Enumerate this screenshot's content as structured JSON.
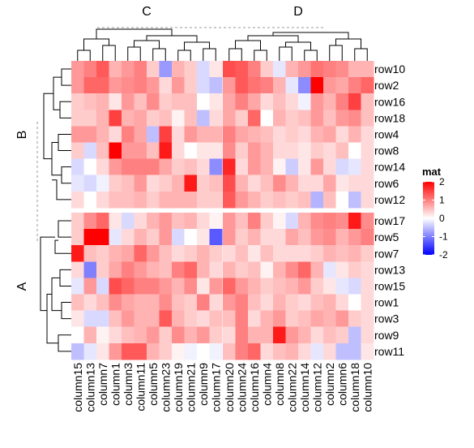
{
  "chart_data": {
    "type": "heatmap",
    "column_groups": [
      {
        "label": "C",
        "columns": [
          "column15",
          "column13",
          "column7",
          "column1",
          "column3",
          "column11",
          "column5",
          "column23",
          "column19",
          "column21",
          "column9",
          "column17"
        ]
      },
      {
        "label": "D",
        "columns": [
          "column20",
          "column24",
          "column16",
          "column4",
          "column8",
          "column22",
          "column14",
          "column12",
          "column2",
          "column6",
          "column18",
          "column10"
        ]
      }
    ],
    "row_groups": [
      {
        "label": "B",
        "rows": [
          "row10",
          "row2",
          "row16",
          "row18",
          "row4",
          "row8",
          "row14",
          "row6",
          "row12"
        ]
      },
      {
        "label": "A",
        "rows": [
          "row17",
          "row5",
          "row7",
          "row13",
          "row15",
          "row1",
          "row3",
          "row9",
          "row11"
        ]
      }
    ],
    "values": [
      [
        0.8,
        1.0,
        1.3,
        0.6,
        0.8,
        1.0,
        0.4,
        -0.8,
        0.6,
        0.4,
        -0.3,
        0.2,
        1.4,
        1.3,
        1.0,
        0.4,
        -0.2,
        0.6,
        0.8,
        1.1,
        1.0,
        0.9,
        0.6,
        0.6
      ],
      [
        0.8,
        1.2,
        1.2,
        0.8,
        0.9,
        1.0,
        0.8,
        0.3,
        0.8,
        0.4,
        -0.3,
        -0.5,
        0.8,
        1.3,
        1.1,
        1.0,
        0.6,
        -0.2,
        -0.9,
        2.0,
        0.8,
        0.7,
        1.0,
        1.2
      ],
      [
        0.4,
        0.5,
        0.6,
        0.2,
        0.8,
        0.5,
        0.9,
        0.4,
        0.5,
        0.5,
        0.0,
        0.2,
        0.7,
        1.0,
        0.7,
        0.3,
        0.5,
        0.3,
        -0.1,
        0.8,
        0.6,
        1.0,
        1.5,
        0.5
      ],
      [
        0.4,
        0.4,
        0.6,
        1.5,
        0.6,
        0.7,
        0.4,
        0.5,
        0.1,
        0.5,
        -0.5,
        0.3,
        0.7,
        0.4,
        1.2,
        0.0,
        0.6,
        0.4,
        0.5,
        0.8,
        0.5,
        0.8,
        0.9,
        0.5
      ],
      [
        0.8,
        0.8,
        0.6,
        0.3,
        1.0,
        0.7,
        -0.5,
        1.5,
        0.3,
        0.8,
        0.6,
        0.6,
        1.0,
        0.7,
        0.6,
        0.5,
        0.3,
        0.4,
        0.3,
        0.6,
        0.7,
        0.3,
        0.6,
        0.3
      ],
      [
        0.4,
        -0.3,
        0.5,
        2.0,
        0.8,
        0.8,
        0.5,
        1.8,
        0.3,
        0.0,
        0.2,
        0.2,
        0.9,
        0.4,
        0.8,
        0.6,
        0.3,
        0.3,
        0.2,
        0.4,
        0.3,
        0.5,
        0.0,
        0.3
      ],
      [
        -0.3,
        0.0,
        0.3,
        0.8,
        1.0,
        1.0,
        1.0,
        0.7,
        0.4,
        0.5,
        0.3,
        -0.9,
        1.7,
        0.3,
        0.8,
        0.6,
        0.1,
        -0.4,
        0.2,
        0.8,
        0.3,
        -0.3,
        -0.2,
        0.3
      ],
      [
        -0.2,
        -0.3,
        -0.1,
        0.4,
        0.5,
        0.8,
        0.3,
        0.4,
        0.6,
        1.8,
        0.4,
        0.5,
        1.4,
        0.6,
        0.3,
        0.5,
        0.9,
        0.6,
        0.3,
        0.3,
        0.7,
        0.2,
        0.3,
        0.3
      ],
      [
        0.3,
        0.0,
        0.3,
        0.5,
        0.5,
        0.6,
        0.4,
        0.6,
        0.6,
        0.6,
        0.4,
        0.4,
        1.3,
        0.8,
        0.6,
        0.4,
        0.5,
        0.4,
        0.5,
        -0.6,
        0.5,
        0.0,
        -0.5,
        0.3
      ],
      [
        0.4,
        0.9,
        1.2,
        0.2,
        -0.3,
        0.3,
        0.6,
        0.8,
        0.5,
        0.6,
        0.3,
        0.1,
        0.8,
        0.5,
        1.0,
        0.4,
        0.1,
        -0.3,
        0.6,
        0.9,
        1.0,
        0.9,
        1.8,
        0.9
      ],
      [
        0.4,
        2.2,
        2.0,
        -0.2,
        0.3,
        0.6,
        0.4,
        0.8,
        -0.3,
        0.0,
        0.2,
        -1.3,
        0.8,
        0.4,
        0.6,
        0.3,
        0.3,
        0.7,
        0.5,
        0.8,
        0.9,
        0.6,
        0.8,
        1.0
      ],
      [
        1.8,
        0.5,
        0.4,
        0.6,
        0.7,
        1.2,
        0.8,
        0.5,
        0.3,
        0.4,
        0.6,
        0.4,
        0.3,
        0.5,
        0.2,
        0.5,
        0.3,
        0.3,
        0.3,
        0.4,
        0.6,
        0.5,
        0.6,
        0.4
      ],
      [
        0.3,
        -1.0,
        0.4,
        0.7,
        1.0,
        0.8,
        0.6,
        0.5,
        1.0,
        1.2,
        0.6,
        0.3,
        0.6,
        0.4,
        0.5,
        0.1,
        0.6,
        0.9,
        1.2,
        0.6,
        -0.2,
        0.2,
        0.4,
        0.3
      ],
      [
        -0.2,
        0.8,
        -0.3,
        1.4,
        1.2,
        1.0,
        1.0,
        0.8,
        0.6,
        0.9,
        0.2,
        0.8,
        1.2,
        0.8,
        0.6,
        0.4,
        0.5,
        0.6,
        0.8,
        0.4,
        0.2,
        -0.2,
        -0.3,
        0.3
      ],
      [
        0.5,
        0.3,
        0.5,
        0.9,
        0.7,
        0.6,
        0.6,
        0.9,
        0.5,
        0.4,
        1.0,
        0.3,
        0.8,
        1.0,
        0.5,
        0.3,
        0.6,
        0.4,
        0.3,
        0.5,
        0.6,
        0.3,
        0.0,
        0.3
      ],
      [
        0.2,
        -0.3,
        -0.3,
        0.5,
        0.8,
        0.6,
        0.6,
        1.3,
        0.6,
        0.4,
        0.3,
        0.5,
        0.5,
        1.0,
        0.3,
        0.6,
        0.8,
        0.4,
        0.5,
        0.7,
        0.6,
        0.8,
        0.4,
        0.3
      ],
      [
        0.0,
        0.6,
        0.1,
        0.3,
        0.5,
        0.6,
        0.8,
        0.4,
        0.9,
        0.6,
        0.8,
        0.4,
        0.3,
        1.0,
        0.6,
        0.6,
        1.8,
        0.8,
        0.6,
        0.3,
        0.5,
        0.4,
        -0.5,
        0.3
      ],
      [
        -0.5,
        -0.2,
        0.2,
        0.8,
        1.3,
        1.3,
        0.6,
        0.4,
        0.1,
        -0.1,
        0.0,
        -0.1,
        0.5,
        1.0,
        1.2,
        0.3,
        0.5,
        0.6,
        0.3,
        -0.2,
        0.3,
        -0.5,
        -0.5,
        0.2
      ]
    ],
    "color_scale": {
      "title": "mat",
      "breaks": [
        2,
        1,
        0,
        -1,
        -2
      ],
      "low": "#0000ff",
      "mid": "#ffffff",
      "high": "#ff0000"
    }
  }
}
